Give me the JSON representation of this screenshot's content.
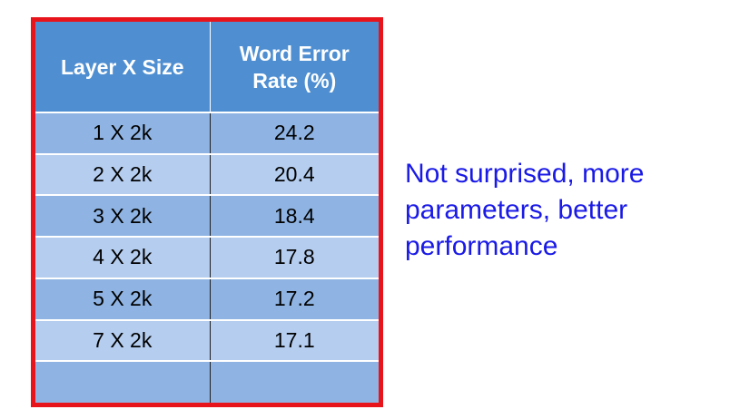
{
  "table": {
    "headers": [
      "Layer X Size",
      "Word Error Rate (%)"
    ],
    "rows": [
      [
        "1 X 2k",
        "24.2"
      ],
      [
        "2 X 2k",
        "20.4"
      ],
      [
        "3 X 2k",
        "18.4"
      ],
      [
        "4 X 2k",
        "17.8"
      ],
      [
        "5 X 2k",
        "17.2"
      ],
      [
        "7 X 2k",
        "17.1"
      ],
      [
        "",
        ""
      ]
    ]
  },
  "note": {
    "lines": [
      "Not surprised, more",
      "parameters, better",
      "performance"
    ]
  },
  "colors": {
    "frame_border": "#e8141b",
    "header_bg": "#4f8fd1",
    "row_dark": "#8fb4e3",
    "row_light": "#b5cdef",
    "note_text": "#1a1ae6"
  }
}
